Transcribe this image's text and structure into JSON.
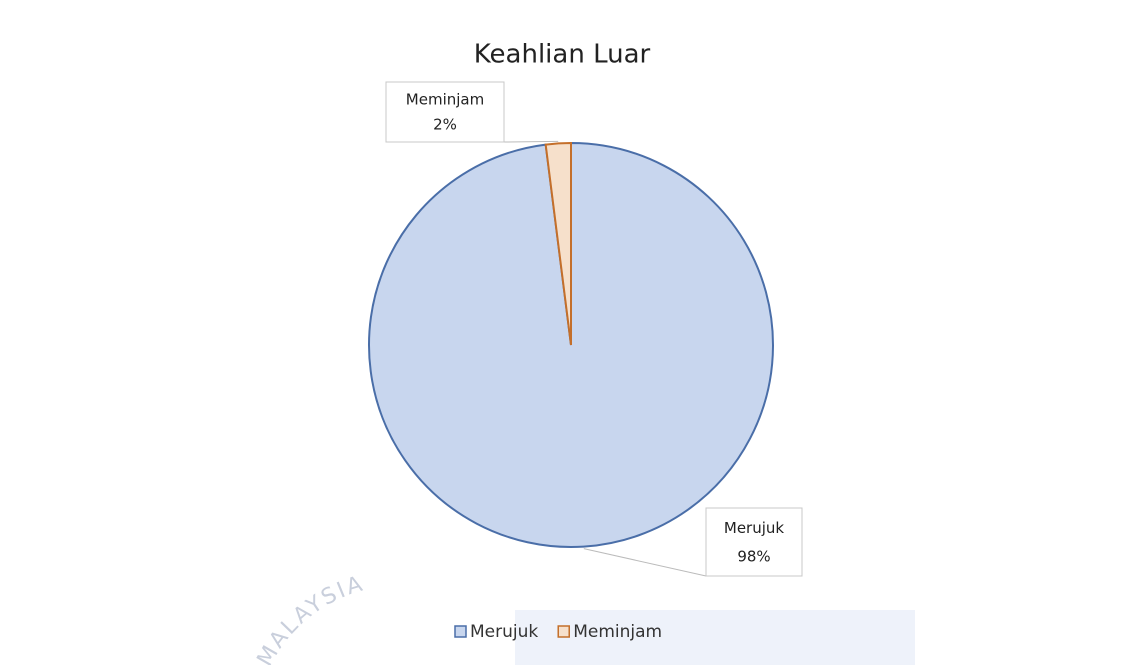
{
  "chart_data": {
    "type": "pie",
    "title": "Keahlian Luar",
    "categories": [
      "Merujuk",
      "Meminjam"
    ],
    "values": [
      98,
      2
    ],
    "value_labels": [
      "98%",
      "2%"
    ],
    "colors": [
      "#c8d6ee",
      "#f6e0cb"
    ],
    "edge_colors": [
      "#4a6ea8",
      "#c46f2a"
    ],
    "legend": "bottom"
  },
  "watermark": "MALAYSIA"
}
